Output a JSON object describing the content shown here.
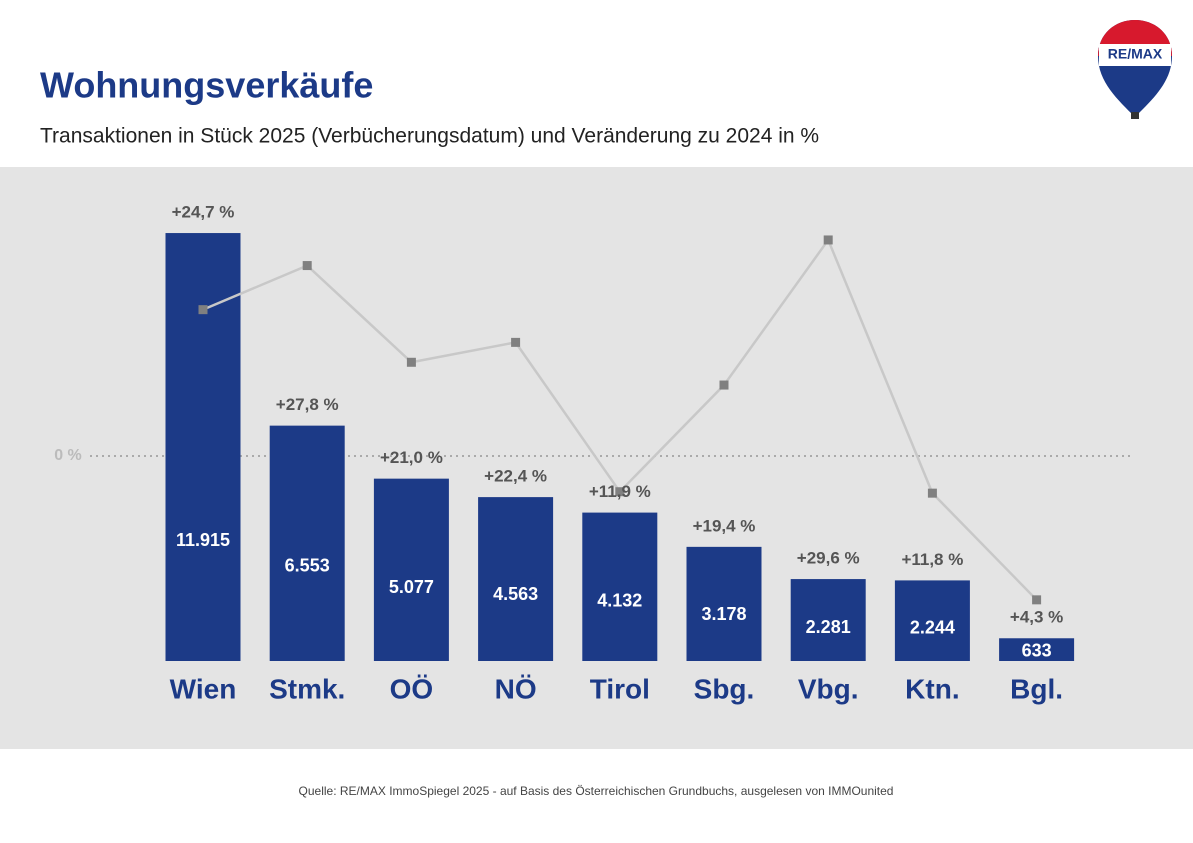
{
  "brand": "RE/MAX",
  "chart_data": {
    "type": "bar",
    "title": "Wohnungsverkäufe",
    "subtitle": "Transaktionen in Stück 2025 (Verbücherungsdatum) und Veränderung zu 2024 in %",
    "categories": [
      "Wien",
      "Stmk.",
      "OÖ",
      "NÖ",
      "Tirol",
      "Sbg.",
      "Vbg.",
      "Ktn.",
      "Bgl."
    ],
    "series": [
      {
        "type": "bar",
        "color": "#1c3a87",
        "values": [
          11915,
          6553,
          5077,
          4563,
          4132,
          3178,
          2281,
          2244,
          633
        ],
        "value_labels": [
          "11.915",
          "6.553",
          "5.077",
          "4.563",
          "4.132",
          "3.178",
          "2.281",
          "2.244",
          "633"
        ]
      },
      {
        "type": "line",
        "axis": "y2",
        "color": "#c8c8c8",
        "marker_color": "#808080",
        "values": [
          24.7,
          27.8,
          21.0,
          22.4,
          11.9,
          19.4,
          29.6,
          11.8,
          4.3
        ],
        "value_labels": [
          "+24,7 %",
          "+27,8 %",
          "+21,0 %",
          "+22,4 %",
          "+11,9 %",
          "+19,4 %",
          "+29,6 %",
          "+11,8 %",
          "+4,3 %"
        ]
      }
    ],
    "ylim": [
      0,
      12000
    ],
    "y2lim": [
      0,
      30.3
    ],
    "reference_line_label": "0 %",
    "source": "Quelle: RE/MAX ImmoSpiegel 2025 - auf Basis des Österreichischen Grundbuchs, ausgelesen von IMMOunited"
  }
}
